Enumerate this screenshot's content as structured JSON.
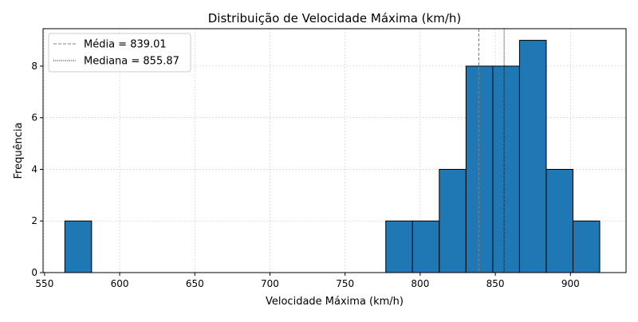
{
  "chart_data": {
    "type": "bar",
    "title": "Distribuição de Velocidade Máxima (km/h)",
    "xlabel": "Velocidade Máxima (km/h)",
    "ylabel": "Frequência",
    "xlim": [
      549,
      937
    ],
    "ylim": [
      0,
      9.45
    ],
    "xticks": [
      550,
      600,
      650,
      700,
      750,
      800,
      850,
      900
    ],
    "yticks": [
      0,
      2,
      4,
      6,
      8
    ],
    "grid": true,
    "legend_position": "top-left",
    "bar_color": "#1f77b4",
    "bin_edges": [
      563.5,
      581.3,
      599.1,
      616.9,
      634.7,
      652.5,
      670.3,
      688.1,
      705.9,
      723.7,
      741.5,
      759.3,
      777.1,
      794.9,
      812.7,
      830.5,
      848.3,
      866.1,
      883.9,
      901.7,
      919.5
    ],
    "values": [
      2,
      0,
      0,
      0,
      0,
      0,
      0,
      0,
      0,
      0,
      0,
      0,
      2,
      2,
      4,
      8,
      8,
      9,
      4,
      2
    ],
    "lines": [
      {
        "label": "Média = 839.01",
        "x": 839.01,
        "style": "dashed",
        "color": "#808080"
      },
      {
        "label": "Mediana = 855.87",
        "x": 855.87,
        "style": "dotted",
        "color": "#000000"
      }
    ]
  }
}
